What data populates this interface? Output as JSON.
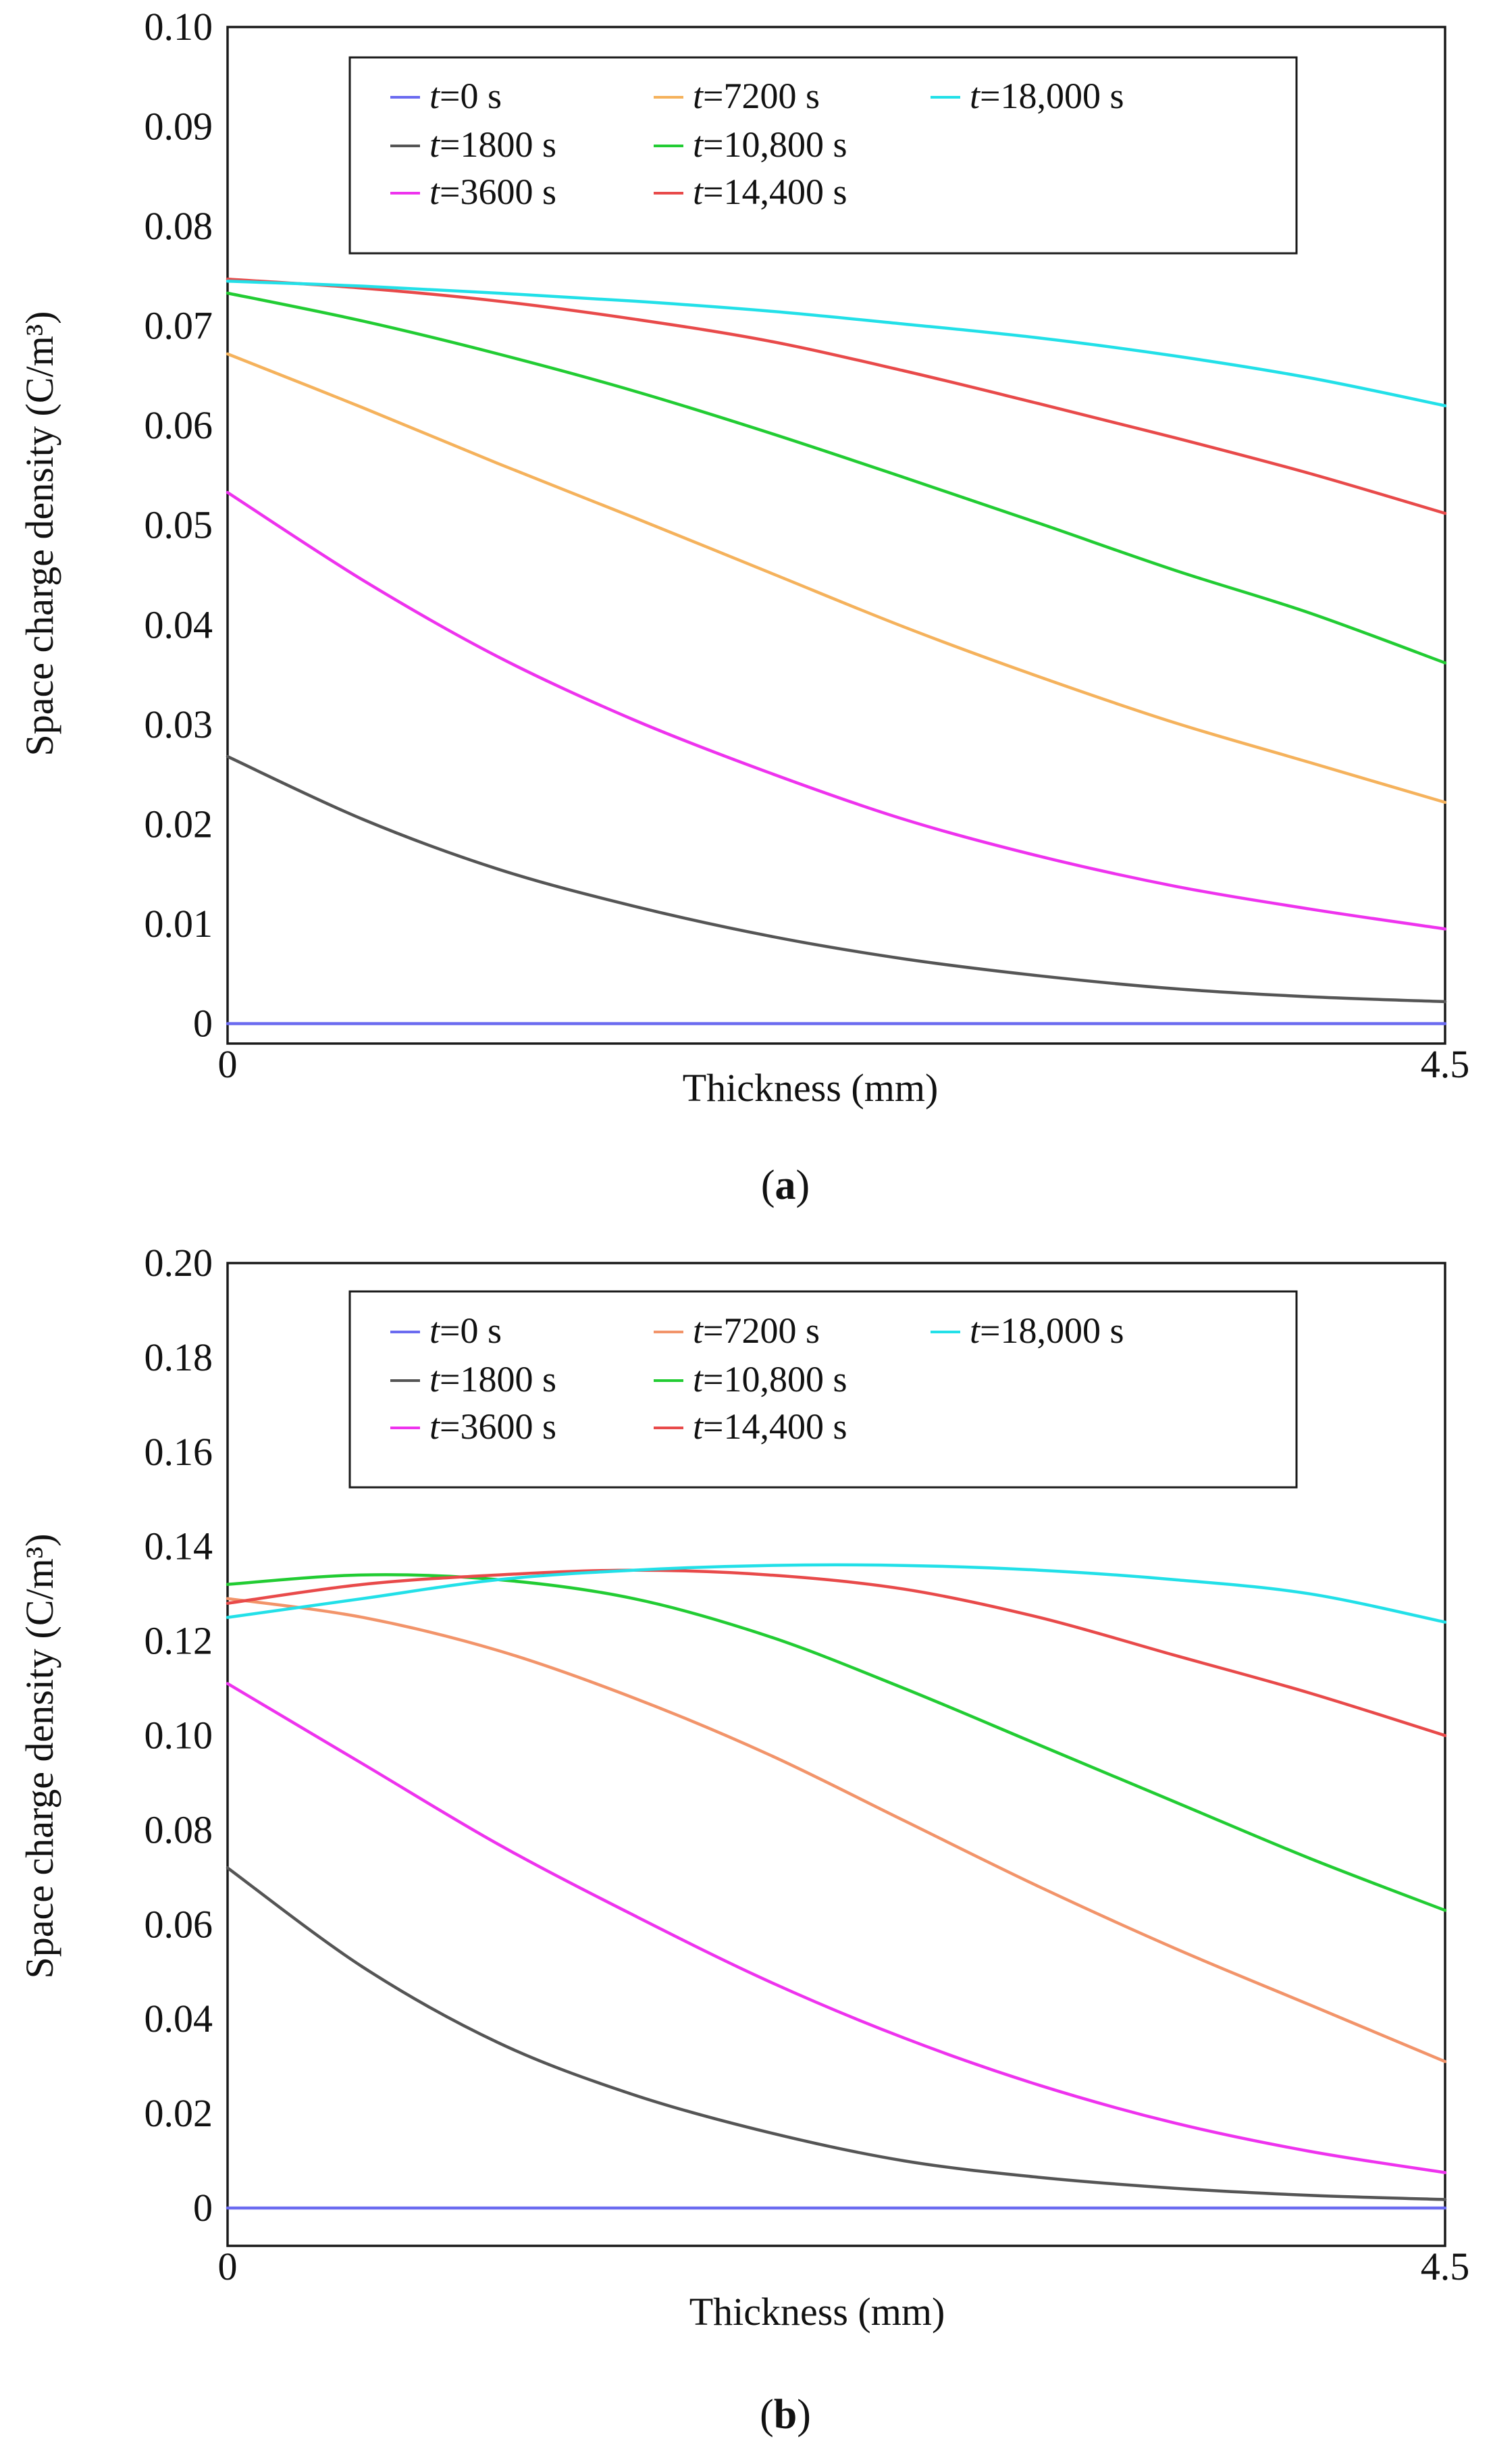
{
  "chart_data": [
    {
      "type": "line",
      "panel": "a",
      "caption": "a",
      "xlabel": "Thickness (mm)",
      "ylabel": "Space charge density (C/m³)",
      "xlim": [
        0,
        4.5
      ],
      "ylim": [
        -0.002,
        0.1
      ],
      "x_tick_labels": [
        "0",
        "4.5"
      ],
      "y_tick_values": [
        0,
        0.01,
        0.02,
        0.03,
        0.04,
        0.05,
        0.06,
        0.07,
        0.08,
        0.09,
        0.1
      ],
      "y_tick_labels": [
        "0",
        "0.01",
        "0.02",
        "0.03",
        "0.04",
        "0.05",
        "0.06",
        "0.07",
        "0.08",
        "0.09",
        "0.10"
      ],
      "legend_position": "top",
      "legend_columns": [
        [
          0,
          1,
          2
        ],
        [
          3,
          4,
          5
        ],
        [
          6
        ]
      ],
      "x": [
        0,
        0.5,
        1.0,
        1.5,
        2.0,
        2.5,
        3.0,
        3.5,
        4.0,
        4.5
      ],
      "series": [
        {
          "name": "t=0 s",
          "prefix": "t",
          "suffix": "=0 s",
          "color": "#6b6bf0",
          "values": [
            0,
            0,
            0,
            0,
            0,
            0,
            0,
            0,
            0,
            0
          ]
        },
        {
          "name": "t=1800 s",
          "prefix": "t",
          "suffix": "=1800 s",
          "color": "#555555",
          "values": [
            0.0268,
            0.0205,
            0.0155,
            0.0118,
            0.0088,
            0.0065,
            0.0048,
            0.0035,
            0.0027,
            0.0022
          ]
        },
        {
          "name": "t=3600 s",
          "prefix": "t",
          "suffix": "=3600 s",
          "color": "#ee33ee",
          "values": [
            0.0533,
            0.0445,
            0.0368,
            0.0305,
            0.0252,
            0.0205,
            0.0168,
            0.0138,
            0.0115,
            0.0095
          ]
        },
        {
          "name": "t=7200 s",
          "prefix": "t",
          "suffix": "=7200 s",
          "color": "#f5b25c",
          "values": [
            0.0672,
            0.0618,
            0.0562,
            0.0508,
            0.0453,
            0.0398,
            0.0348,
            0.0302,
            0.0262,
            0.0222
          ]
        },
        {
          "name": "t=10,800 s",
          "prefix": "t",
          "suffix": "=10,800 s",
          "color": "#22cc33",
          "values": [
            0.0733,
            0.0705,
            0.0672,
            0.0635,
            0.0593,
            0.0548,
            0.0502,
            0.0455,
            0.0412,
            0.0362
          ]
        },
        {
          "name": "t=14,400 s",
          "prefix": "t",
          "suffix": "=14,400 s",
          "color": "#e84a4a",
          "values": [
            0.0747,
            0.0738,
            0.0725,
            0.0707,
            0.0685,
            0.0655,
            0.0622,
            0.0588,
            0.0552,
            0.0512
          ]
        },
        {
          "name": "t=18,000 s",
          "prefix": "t",
          "suffix": "=18,000 s",
          "color": "#22e0e8",
          "values": [
            0.0745,
            0.074,
            0.0733,
            0.0725,
            0.0715,
            0.0702,
            0.0688,
            0.067,
            0.0648,
            0.062
          ]
        }
      ]
    },
    {
      "type": "line",
      "panel": "b",
      "caption": "b",
      "xlabel": "Thickness (mm)",
      "ylabel": "Space charge density (C/m³)",
      "xlim": [
        0,
        4.5
      ],
      "ylim": [
        -0.008,
        0.2
      ],
      "x_tick_labels": [
        "0",
        "4.5"
      ],
      "y_tick_values": [
        0,
        0.02,
        0.04,
        0.06,
        0.08,
        0.1,
        0.12,
        0.14,
        0.16,
        0.18,
        0.2
      ],
      "y_tick_labels": [
        "0",
        "0.02",
        "0.04",
        "0.06",
        "0.08",
        "0.10",
        "0.12",
        "0.14",
        "0.16",
        "0.18",
        "0.20"
      ],
      "legend_position": "top",
      "legend_columns": [
        [
          0,
          1,
          2
        ],
        [
          3,
          4,
          5
        ],
        [
          6
        ]
      ],
      "x": [
        0,
        0.5,
        1.0,
        1.5,
        2.0,
        2.5,
        3.0,
        3.5,
        4.0,
        4.5
      ],
      "series": [
        {
          "name": "t=0 s",
          "prefix": "t",
          "suffix": "=0 s",
          "color": "#6b6bf0",
          "values": [
            0,
            0,
            0,
            0,
            0,
            0,
            0,
            0,
            0,
            0
          ]
        },
        {
          "name": "t=1800 s",
          "prefix": "t",
          "suffix": "=1800 s",
          "color": "#555555",
          "values": [
            0.072,
            0.051,
            0.035,
            0.024,
            0.016,
            0.01,
            0.0065,
            0.0042,
            0.0027,
            0.0018
          ]
        },
        {
          "name": "t=3600 s",
          "prefix": "t",
          "suffix": "=3600 s",
          "color": "#ee33ee",
          "values": [
            0.111,
            0.094,
            0.077,
            0.062,
            0.048,
            0.036,
            0.026,
            0.018,
            0.012,
            0.0075
          ]
        },
        {
          "name": "t=7200 s",
          "prefix": "t",
          "suffix": "=7200 s",
          "color": "#f2946a",
          "values": [
            0.129,
            0.125,
            0.118,
            0.108,
            0.096,
            0.082,
            0.068,
            0.055,
            0.043,
            0.031
          ]
        },
        {
          "name": "t=10,800 s",
          "prefix": "t",
          "suffix": "=10,800 s",
          "color": "#22cc33",
          "values": [
            0.132,
            0.134,
            0.133,
            0.129,
            0.121,
            0.11,
            0.098,
            0.086,
            0.074,
            0.063
          ]
        },
        {
          "name": "t=14,400 s",
          "prefix": "t",
          "suffix": "=14,400 s",
          "color": "#e84a4a",
          "values": [
            0.128,
            0.132,
            0.134,
            0.135,
            0.134,
            0.131,
            0.125,
            0.117,
            0.109,
            0.1
          ]
        },
        {
          "name": "t=18,000 s",
          "prefix": "t",
          "suffix": "=18,000 s",
          "color": "#22e0e8",
          "values": [
            0.125,
            0.129,
            0.133,
            0.135,
            0.136,
            0.136,
            0.135,
            0.133,
            0.13,
            0.124
          ]
        }
      ]
    }
  ]
}
